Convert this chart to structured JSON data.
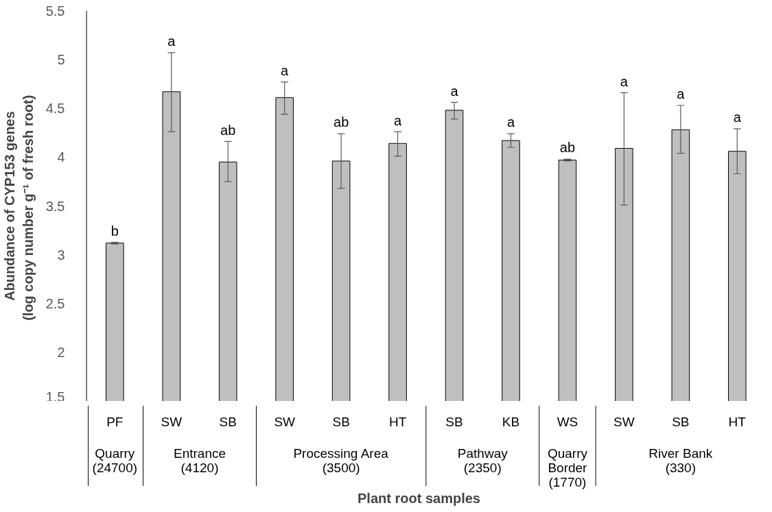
{
  "chart_data": {
    "type": "bar",
    "xlabel": "Plant root samples",
    "ylabel": "Abundance of CYP153 genes\n(log copy number  g⁻¹ of fresh root)",
    "categories": [
      "PF",
      "SW",
      "SB",
      "SW",
      "SB",
      "HT",
      "SB",
      "KB",
      "WS",
      "SW",
      "SB",
      "HT"
    ],
    "values": [
      3.12,
      4.67,
      3.95,
      4.61,
      3.96,
      4.14,
      4.48,
      4.17,
      3.97,
      4.09,
      4.28,
      4.06
    ],
    "errors": [
      0.01,
      [
        4.26,
        5.07
      ],
      [
        3.75,
        4.16
      ],
      [
        4.44,
        4.77
      ],
      [
        3.68,
        4.24
      ],
      [
        4.01,
        4.26
      ],
      [
        4.39,
        4.56
      ],
      [
        4.1,
        4.24
      ],
      0.01,
      [
        3.51,
        4.66
      ],
      [
        4.04,
        4.53
      ],
      [
        3.83,
        4.29
      ]
    ],
    "color": "#bfbfbf",
    "annotations": [
      "b",
      "a",
      "ab",
      "a",
      "ab",
      "a",
      "a",
      "a",
      "ab",
      "a",
      "a",
      "a",
      "Quarry\n(24700)",
      "Entrance\n(4120)",
      "Processing Area\n(3500)",
      "Pathway\n(2350)",
      "Quarry\nBorder\n(1770)",
      "River Bank\n(330)"
    ],
    "ylim": [
      1.5,
      5.5
    ],
    "yticks": [
      1.5,
      2,
      2.5,
      3,
      3.5,
      4,
      4.5,
      5,
      5.5
    ],
    "grid": false
  }
}
